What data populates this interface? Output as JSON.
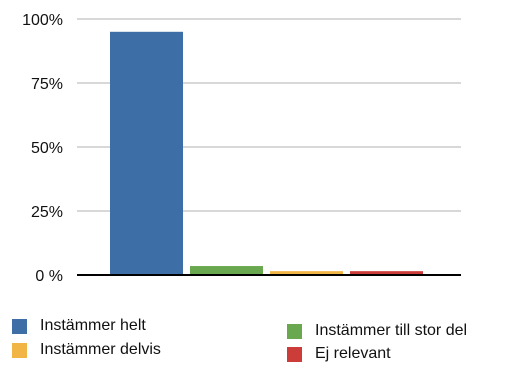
{
  "chart_data": {
    "type": "bar",
    "categories": [
      "Instämmer helt",
      "Instämmer till stor del",
      "Instämmer delvis",
      "Ej relevant"
    ],
    "values": [
      95,
      3.5,
      1.5,
      1.5
    ],
    "colors": [
      "#3d6ea5",
      "#6aa84f",
      "#f0b545",
      "#cc3d3a"
    ],
    "ylim": [
      0,
      100
    ],
    "yticks": [
      0,
      25,
      50,
      75,
      100
    ],
    "ytick_labels": [
      "0 %",
      "25%",
      "50%",
      "75%",
      "100%"
    ],
    "grid": true,
    "legend_position": "bottom",
    "title": "",
    "xlabel": "",
    "ylabel": ""
  },
  "legend": {
    "items": [
      {
        "label": "Instämmer helt",
        "color": "#3d6ea5"
      },
      {
        "label": "Instämmer delvis",
        "color": "#f0b545"
      },
      {
        "label": "Instämmer till stor del",
        "color": "#6aa84f"
      },
      {
        "label": "Ej relevant",
        "color": "#cc3d3a"
      }
    ]
  }
}
